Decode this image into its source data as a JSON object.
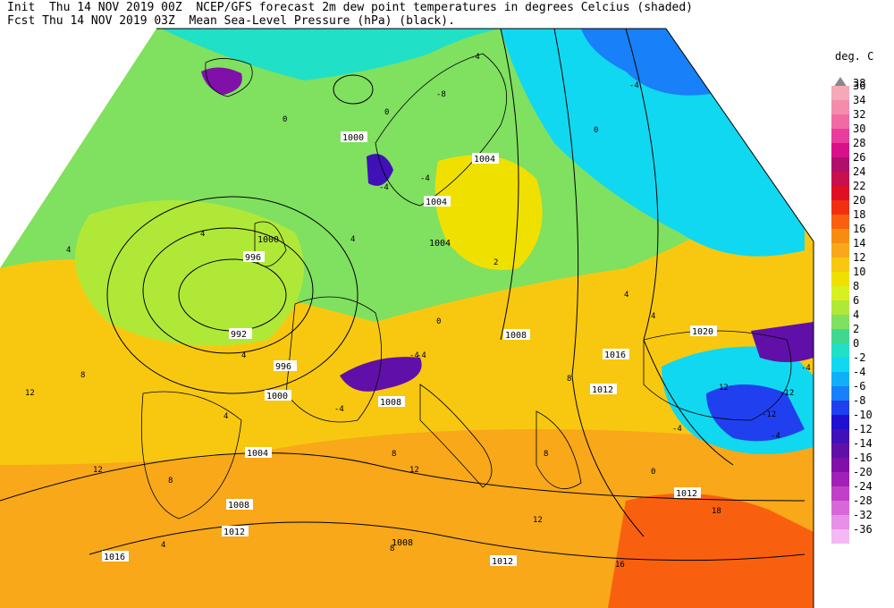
{
  "header": {
    "line1": "Init  Thu 14 NOV 2019 00Z  NCEP/GFS forecast 2m dew point temperatures in degrees Celcius (shaded)",
    "line2": "Fcst Thu 14 NOV 2019 03Z  Mean Sea-Level Pressure (hPa) (black)."
  },
  "legend": {
    "unit": "deg. C",
    "top_label": "38",
    "entries": [
      {
        "label": "36",
        "color": "#f4a8b8"
      },
      {
        "label": "34",
        "color": "#f48cac"
      },
      {
        "label": "32",
        "color": "#f06aa4"
      },
      {
        "label": "30",
        "color": "#ea3c9c"
      },
      {
        "label": "28",
        "color": "#d8108a"
      },
      {
        "label": "26",
        "color": "#b0106c"
      },
      {
        "label": "24",
        "color": "#c8104e"
      },
      {
        "label": "22",
        "color": "#e01024"
      },
      {
        "label": "20",
        "color": "#f03010"
      },
      {
        "label": "18",
        "color": "#f86010"
      },
      {
        "label": "16",
        "color": "#f88c10"
      },
      {
        "label": "14",
        "color": "#f8a818"
      },
      {
        "label": "12",
        "color": "#f8c810"
      },
      {
        "label": "10",
        "color": "#f0e000"
      },
      {
        "label": "8",
        "color": "#d8f020"
      },
      {
        "label": "6",
        "color": "#b0e838"
      },
      {
        "label": "4",
        "color": "#80e060"
      },
      {
        "label": "2",
        "color": "#40d890"
      },
      {
        "label": "0",
        "color": "#20e0c8"
      },
      {
        "label": "-2",
        "color": "#10d8f0"
      },
      {
        "label": "-4",
        "color": "#10b0f8"
      },
      {
        "label": "-6",
        "color": "#1880f8"
      },
      {
        "label": "-8",
        "color": "#2040f0"
      },
      {
        "label": "-10",
        "color": "#2010d0"
      },
      {
        "label": "-12",
        "color": "#4010b8"
      },
      {
        "label": "-14",
        "color": "#6010a8"
      },
      {
        "label": "-16",
        "color": "#8010a8"
      },
      {
        "label": "-20",
        "color": "#a020b8"
      },
      {
        "label": "-24",
        "color": "#c040c8"
      },
      {
        "label": "-28",
        "color": "#d868d8"
      },
      {
        "label": "-32",
        "color": "#e890e8"
      },
      {
        "label": "-36",
        "color": "#f4b8f4"
      }
    ]
  },
  "isobar_labels": [
    "1000",
    "996",
    "992",
    "996",
    "1000",
    "1004",
    "1004",
    "1004",
    "1008",
    "1008",
    "1008",
    "1012",
    "1016",
    "1016",
    "1012",
    "1020",
    "1016",
    "1012",
    "1012",
    "1000",
    "1008",
    "1004"
  ],
  "dewpoint_labels": [
    "0",
    "0",
    "-4",
    "-8",
    "-4",
    "-4",
    "-4",
    "0",
    "-4",
    "4",
    "4",
    "4",
    "4",
    "4",
    "8",
    "8",
    "12",
    "12",
    "8",
    "0",
    "-4",
    "-4",
    "-4",
    "-12",
    "-12",
    "-4",
    "4",
    "8",
    "12",
    "12",
    "8",
    "16",
    "18",
    "4",
    "8",
    "4",
    "0",
    "-4",
    "12",
    "2"
  ]
}
